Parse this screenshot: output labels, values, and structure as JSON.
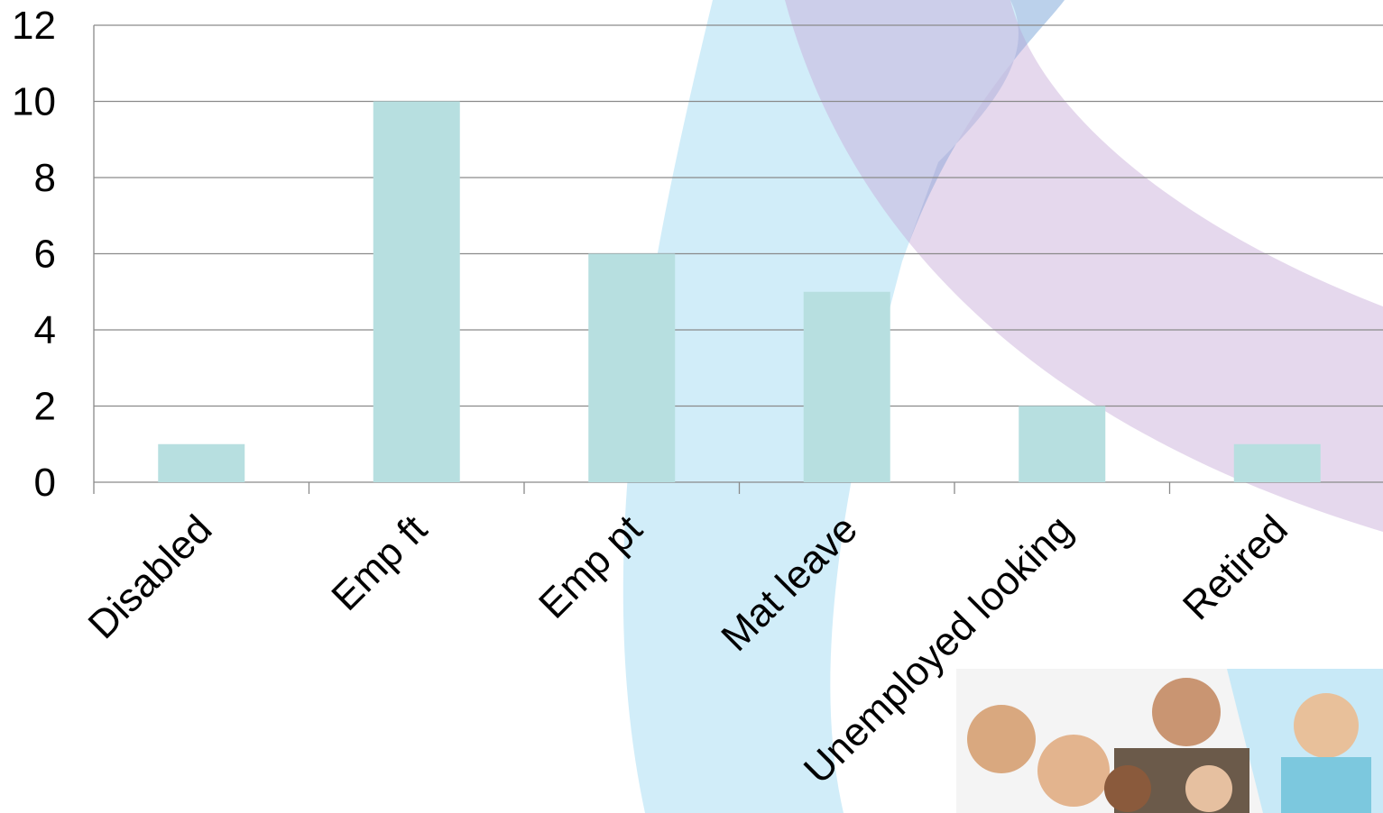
{
  "chart_data": {
    "type": "bar",
    "categories": [
      "Disabled",
      "Emp ft",
      "Emp pt",
      "Mat leave",
      "Unemployed looking",
      "Retired"
    ],
    "values": [
      1,
      10,
      6,
      5,
      2,
      1
    ],
    "color": "#b7dfe0",
    "ylim": [
      0,
      12
    ],
    "yticks": [
      0,
      2,
      4,
      6,
      8,
      10,
      12
    ],
    "grid": true
  }
}
